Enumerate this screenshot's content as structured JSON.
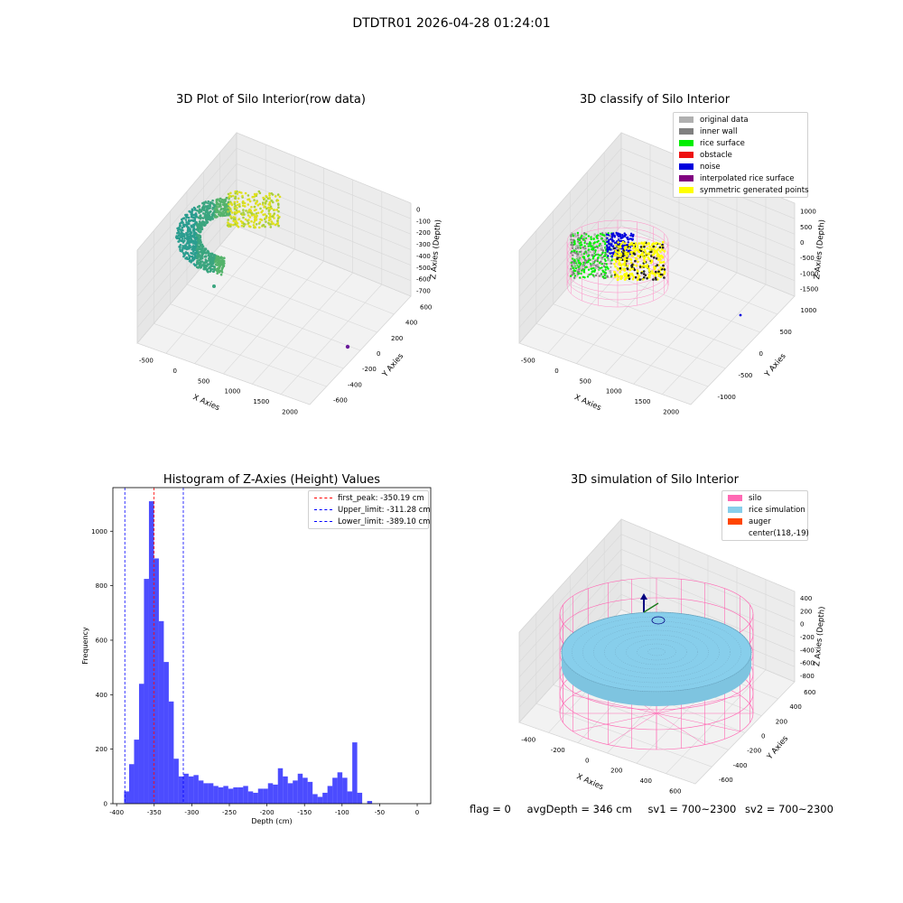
{
  "figure_title": "DTDTR01 2026-04-28 01:24:01",
  "panels": {
    "raw": {
      "title": "3D Plot of Silo Interior(row data)",
      "xlabel": "X Axies",
      "ylabel": "Y Axies",
      "zlabel": "Z Axies (Depth)",
      "x_ticks": [
        "-500",
        "0",
        "500",
        "1000",
        "1500",
        "2000"
      ],
      "y_ticks": [
        "600",
        "400",
        "200",
        "0",
        "-200",
        "-400",
        "-600"
      ],
      "z_ticks": [
        "0",
        "-100",
        "-200",
        "-300",
        "-400",
        "-500",
        "-600",
        "-700"
      ]
    },
    "classify": {
      "title": "3D classify of Silo Interior",
      "xlabel": "X Axies",
      "ylabel": "Y Axies",
      "zlabel": "Z Axies (Depth)",
      "x_ticks": [
        "-500",
        "0",
        "500",
        "1000",
        "1500",
        "2000"
      ],
      "y_ticks": [
        "1000",
        "500",
        "0",
        "-500",
        "-1000"
      ],
      "z_ticks": [
        "1000",
        "500",
        "0",
        "-500",
        "-1000",
        "-1500"
      ],
      "legend": [
        {
          "label": "original data",
          "color": "#b0b0b0"
        },
        {
          "label": "inner wall",
          "color": "#808080"
        },
        {
          "label": "rice surface",
          "color": "#00ee00"
        },
        {
          "label": "obstacle",
          "color": "#ee1111"
        },
        {
          "label": "noise",
          "color": "#0000dd"
        },
        {
          "label": "interpolated rice surface",
          "color": "#800080"
        },
        {
          "label": "symmetric generated points",
          "color": "#ffff00"
        }
      ]
    },
    "simulation": {
      "title": "3D simulation of Silo Interior",
      "xlabel": "X Axies",
      "ylabel": "Y Axies",
      "zlabel": "Z Axies (Depth)",
      "x_ticks": [
        "-400",
        "-200",
        "0",
        "200",
        "400",
        "600"
      ],
      "y_ticks": [
        "600",
        "400",
        "200",
        "0",
        "-200",
        "-400",
        "-600"
      ],
      "z_ticks": [
        "400",
        "200",
        "0",
        "-200",
        "-400",
        "-600",
        "-800"
      ],
      "legend": [
        {
          "label": "silo",
          "color": "#ff69b4"
        },
        {
          "label": "rice simulation",
          "color": "#87ceeb"
        },
        {
          "label": "auger",
          "color": "#ff4500"
        },
        {
          "label": "center(118,-19)",
          "color": ""
        }
      ]
    }
  },
  "status": {
    "flag": "flag = 0",
    "avg_depth": "avgDepth = 346 cm",
    "sv1": "sv1 = 700~2300",
    "sv2": "sv2 = 700~2300"
  },
  "chart_data": {
    "type": "bar",
    "title": "Histogram of Z-Axies (Height) Values",
    "xlabel": "Depth (cm)",
    "ylabel": "Frequency",
    "xlim": [
      -405,
      18
    ],
    "ylim": [
      0,
      1160
    ],
    "x_ticks": [
      -400,
      -350,
      -300,
      -250,
      -200,
      -150,
      -100,
      -50,
      0
    ],
    "y_ticks": [
      0,
      200,
      400,
      600,
      800,
      1000
    ],
    "bar_color": "#0000ff",
    "bin_start": -390,
    "bin_width": 6.6,
    "values": [
      45,
      145,
      235,
      440,
      825,
      1110,
      900,
      670,
      520,
      375,
      165,
      100,
      110,
      100,
      105,
      85,
      75,
      75,
      65,
      60,
      65,
      55,
      60,
      60,
      65,
      45,
      40,
      55,
      55,
      75,
      70,
      130,
      100,
      75,
      85,
      110,
      95,
      80,
      35,
      25,
      40,
      65,
      95,
      115,
      95,
      45,
      225,
      40,
      0,
      10
    ],
    "reference_lines": [
      {
        "label": "first_peak: -350.19 cm",
        "value": -350.19,
        "color": "#ff0000"
      },
      {
        "label": "Upper_limit: -311.28 cm",
        "value": -311.28,
        "color": "#0000ff"
      },
      {
        "label": "Lower_limit: -389.10 cm",
        "value": -389.1,
        "color": "#0000ff"
      }
    ]
  }
}
